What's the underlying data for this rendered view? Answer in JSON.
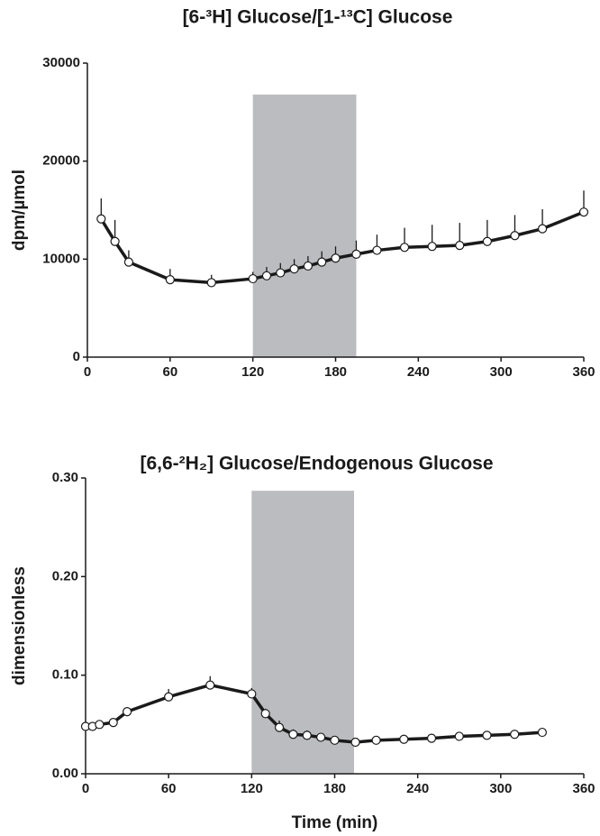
{
  "chart_data": [
    {
      "type": "line",
      "title": "[6-³H] Glucose/[1-¹³C] Glucose",
      "ylabel": "dpm/µmol",
      "x": [
        10,
        20,
        30,
        60,
        90,
        120,
        130,
        140,
        150,
        160,
        170,
        180,
        195,
        210,
        230,
        250,
        270,
        290,
        310,
        330,
        360
      ],
      "series": [
        {
          "color": "#1a1a1a",
          "values": [
            14100,
            11800,
            9700,
            7900,
            7600,
            8000,
            8300,
            8600,
            9000,
            9300,
            9700,
            10100,
            10500,
            10900,
            11200,
            11300,
            11400,
            11800,
            12400,
            13100,
            14800
          ],
          "errors": [
            2100,
            2200,
            1200,
            1100,
            800,
            700,
            900,
            1000,
            1000,
            1000,
            1100,
            1200,
            1400,
            1600,
            2000,
            2200,
            2300,
            2200,
            2100,
            2000,
            2200
          ]
        }
      ],
      "highlight": {
        "color": "#bbbcbf",
        "xlim": [
          120,
          195
        ],
        "ylim": [
          0,
          26800
        ]
      },
      "xlim": [
        0,
        360
      ],
      "xticks": [
        0,
        60,
        120,
        180,
        240,
        300,
        360
      ],
      "ylim": [
        0,
        30000
      ],
      "yticks": [
        0,
        10000,
        20000,
        30000
      ]
    },
    {
      "type": "line",
      "title": "[6,6-²H₂] Glucose/Endogenous Glucose",
      "ylabel": "dimensionless",
      "xlabel": "Time (min)",
      "x": [
        0,
        5,
        10,
        20,
        30,
        60,
        90,
        120,
        130,
        140,
        150,
        160,
        170,
        180,
        195,
        210,
        230,
        250,
        270,
        290,
        310,
        330
      ],
      "series": [
        {
          "color": "#1a1a1a",
          "values": [
            0.048,
            0.048,
            0.05,
            0.052,
            0.063,
            0.078,
            0.09,
            0.081,
            0.061,
            0.047,
            0.04,
            0.039,
            0.037,
            0.034,
            0.032,
            0.034,
            0.035,
            0.036,
            0.038,
            0.039,
            0.04,
            0.042
          ],
          "errors": [
            0.002,
            0.002,
            0.003,
            0.004,
            0.003,
            0.008,
            0.009,
            0.006,
            0.005,
            0.007,
            0.005,
            0.005,
            0.004,
            0.004,
            0.002,
            0.002,
            0.002,
            0.002,
            0.002,
            0.002,
            0.002,
            0.002
          ]
        }
      ],
      "highlight": {
        "color": "#bbbcbf",
        "xlim": [
          120,
          194
        ],
        "ylim": [
          0,
          0.287
        ]
      },
      "xlim": [
        0,
        360
      ],
      "xticks": [
        0,
        60,
        120,
        180,
        240,
        300,
        360
      ],
      "ylim": [
        0,
        0.3
      ],
      "yticks": [
        {
          "value": 0,
          "label": "0.00"
        },
        {
          "value": 0.1,
          "label": "0.10"
        },
        {
          "value": 0.2,
          "label": "0.20"
        },
        {
          "value": 0.3,
          "label": "0.30"
        }
      ]
    }
  ]
}
